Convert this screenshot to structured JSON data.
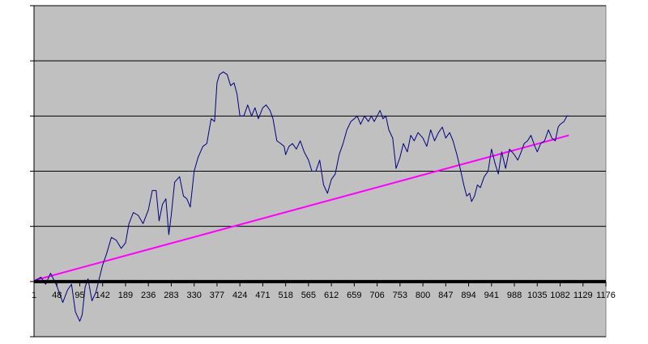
{
  "chart_data": {
    "type": "line",
    "title": "",
    "xlabel": "",
    "ylabel": "",
    "xlim": [
      1,
      1176
    ],
    "ylim": [
      -1,
      5
    ],
    "grid": true,
    "legend": "none",
    "x_tick_labels": [
      "1",
      "48",
      "95",
      "142",
      "189",
      "236",
      "283",
      "330",
      "377",
      "424",
      "471",
      "518",
      "565",
      "612",
      "659",
      "706",
      "753",
      "800",
      "847",
      "894",
      "941",
      "988",
      "1035",
      "1082",
      "1129",
      "1176"
    ],
    "x_ticks": [
      1,
      48,
      95,
      142,
      189,
      236,
      283,
      330,
      377,
      424,
      471,
      518,
      565,
      612,
      659,
      706,
      753,
      800,
      847,
      894,
      941,
      988,
      1035,
      1082,
      1129,
      1176
    ],
    "y_gridlines": [
      -1,
      0,
      1,
      2,
      3,
      4,
      5
    ],
    "zero_line": 0,
    "colors": {
      "plot_background": "#c0c0c0",
      "gridline": "#000000",
      "series_main": "#000080",
      "series_trend": "#ff00ff",
      "zero_line": "#000000"
    },
    "series": [
      {
        "values": [
          [
            1,
            0.0
          ],
          [
            15,
            0.08
          ],
          [
            25,
            -0.05
          ],
          [
            35,
            0.15
          ],
          [
            48,
            -0.08
          ],
          [
            60,
            -0.38
          ],
          [
            70,
            -0.15
          ],
          [
            78,
            -0.05
          ],
          [
            86,
            -0.55
          ],
          [
            95,
            -0.72
          ],
          [
            100,
            -0.6
          ],
          [
            106,
            -0.1
          ],
          [
            112,
            0.05
          ],
          [
            120,
            -0.35
          ],
          [
            128,
            -0.2
          ],
          [
            135,
            0.05
          ],
          [
            142,
            0.3
          ],
          [
            150,
            0.5
          ],
          [
            160,
            0.8
          ],
          [
            170,
            0.75
          ],
          [
            180,
            0.6
          ],
          [
            189,
            0.7
          ],
          [
            196,
            1.05
          ],
          [
            205,
            1.25
          ],
          [
            215,
            1.2
          ],
          [
            225,
            1.05
          ],
          [
            236,
            1.3
          ],
          [
            244,
            1.65
          ],
          [
            252,
            1.65
          ],
          [
            258,
            1.1
          ],
          [
            265,
            1.4
          ],
          [
            272,
            1.5
          ],
          [
            278,
            0.85
          ],
          [
            283,
            1.2
          ],
          [
            290,
            1.8
          ],
          [
            300,
            1.9
          ],
          [
            308,
            1.55
          ],
          [
            315,
            1.5
          ],
          [
            322,
            1.35
          ],
          [
            330,
            2.0
          ],
          [
            338,
            2.25
          ],
          [
            348,
            2.45
          ],
          [
            356,
            2.5
          ],
          [
            365,
            2.95
          ],
          [
            372,
            2.9
          ],
          [
            377,
            3.6
          ],
          [
            382,
            3.75
          ],
          [
            390,
            3.8
          ],
          [
            398,
            3.75
          ],
          [
            405,
            3.55
          ],
          [
            412,
            3.6
          ],
          [
            418,
            3.4
          ],
          [
            424,
            3.0
          ],
          [
            432,
            3.0
          ],
          [
            440,
            3.2
          ],
          [
            448,
            3.0
          ],
          [
            455,
            3.15
          ],
          [
            462,
            2.95
          ],
          [
            471,
            3.15
          ],
          [
            478,
            3.2
          ],
          [
            486,
            3.1
          ],
          [
            492,
            2.95
          ],
          [
            500,
            2.55
          ],
          [
            508,
            2.5
          ],
          [
            515,
            2.45
          ],
          [
            518,
            2.3
          ],
          [
            525,
            2.45
          ],
          [
            532,
            2.5
          ],
          [
            540,
            2.4
          ],
          [
            548,
            2.55
          ],
          [
            556,
            2.35
          ],
          [
            565,
            2.2
          ],
          [
            572,
            2.0
          ],
          [
            580,
            2.0
          ],
          [
            588,
            2.2
          ],
          [
            596,
            1.75
          ],
          [
            604,
            1.6
          ],
          [
            612,
            1.85
          ],
          [
            620,
            1.95
          ],
          [
            628,
            2.3
          ],
          [
            636,
            2.5
          ],
          [
            644,
            2.75
          ],
          [
            652,
            2.9
          ],
          [
            659,
            2.95
          ],
          [
            665,
            3.0
          ],
          [
            672,
            2.85
          ],
          [
            680,
            3.0
          ],
          [
            688,
            2.9
          ],
          [
            694,
            3.0
          ],
          [
            700,
            2.9
          ],
          [
            706,
            3.0
          ],
          [
            712,
            3.1
          ],
          [
            718,
            2.95
          ],
          [
            724,
            3.0
          ],
          [
            730,
            2.75
          ],
          [
            738,
            2.6
          ],
          [
            745,
            2.05
          ],
          [
            753,
            2.25
          ],
          [
            760,
            2.5
          ],
          [
            768,
            2.35
          ],
          [
            775,
            2.65
          ],
          [
            782,
            2.55
          ],
          [
            790,
            2.7
          ],
          [
            800,
            2.6
          ],
          [
            808,
            2.45
          ],
          [
            816,
            2.75
          ],
          [
            824,
            2.55
          ],
          [
            832,
            2.7
          ],
          [
            840,
            2.8
          ],
          [
            847,
            2.6
          ],
          [
            855,
            2.7
          ],
          [
            862,
            2.55
          ],
          [
            870,
            2.3
          ],
          [
            878,
            2.0
          ],
          [
            884,
            1.75
          ],
          [
            890,
            1.55
          ],
          [
            896,
            1.6
          ],
          [
            900,
            1.45
          ],
          [
            906,
            1.55
          ],
          [
            912,
            1.75
          ],
          [
            918,
            1.7
          ],
          [
            926,
            1.9
          ],
          [
            934,
            2.0
          ],
          [
            941,
            2.4
          ],
          [
            948,
            2.15
          ],
          [
            955,
            1.95
          ],
          [
            962,
            2.35
          ],
          [
            970,
            2.05
          ],
          [
            978,
            2.4
          ],
          [
            988,
            2.3
          ],
          [
            995,
            2.2
          ],
          [
            1002,
            2.35
          ],
          [
            1008,
            2.5
          ],
          [
            1015,
            2.55
          ],
          [
            1022,
            2.65
          ],
          [
            1030,
            2.45
          ],
          [
            1035,
            2.35
          ],
          [
            1042,
            2.5
          ],
          [
            1050,
            2.55
          ],
          [
            1058,
            2.75
          ],
          [
            1065,
            2.6
          ],
          [
            1072,
            2.55
          ],
          [
            1078,
            2.8
          ],
          [
            1082,
            2.85
          ],
          [
            1090,
            2.9
          ],
          [
            1096,
            3.0
          ],
          [
            1100,
            3.0
          ]
        ]
      },
      {
        "values": [
          [
            1,
            0.02
          ],
          [
            1100,
            2.65
          ]
        ]
      }
    ]
  }
}
